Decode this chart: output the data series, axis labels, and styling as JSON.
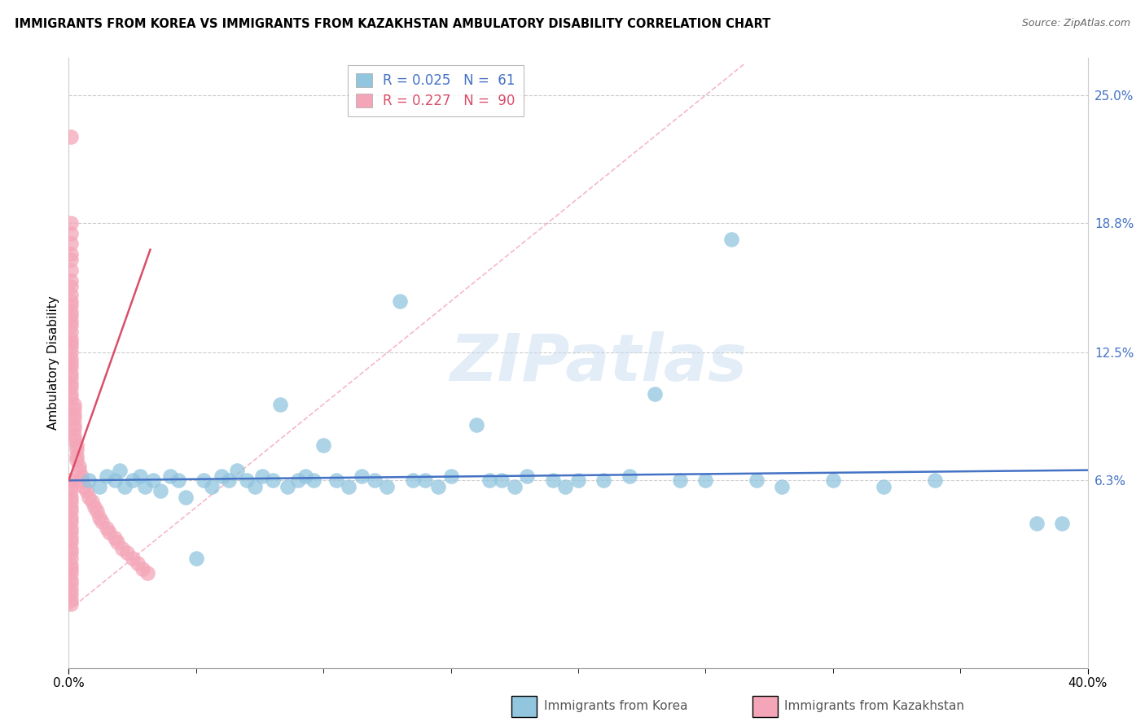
{
  "title": "IMMIGRANTS FROM KOREA VS IMMIGRANTS FROM KAZAKHSTAN AMBULATORY DISABILITY CORRELATION CHART",
  "source": "Source: ZipAtlas.com",
  "ylabel": "Ambulatory Disability",
  "xmin": 0.0,
  "xmax": 0.4,
  "ymin": -0.028,
  "ymax": 0.268,
  "ytick_vals": [
    0.063,
    0.125,
    0.188,
    0.25
  ],
  "ytick_labels": [
    "6.3%",
    "12.5%",
    "18.8%",
    "25.0%"
  ],
  "legend_korea_r": "R = 0.025",
  "legend_korea_n": "N =  61",
  "legend_kaz_r": "R = 0.227",
  "legend_kaz_n": "N =  90",
  "color_korea": "#92C5DE",
  "color_kazakhstan": "#F4A6B8",
  "trend_korea_color": "#4472C4",
  "trend_kaz_color": "#D94F6A",
  "diag_color": "#F4A6B8",
  "korea_x": [
    0.008,
    0.012,
    0.015,
    0.018,
    0.02,
    0.022,
    0.025,
    0.028,
    0.03,
    0.033,
    0.036,
    0.04,
    0.043,
    0.046,
    0.05,
    0.053,
    0.056,
    0.06,
    0.063,
    0.066,
    0.07,
    0.073,
    0.076,
    0.08,
    0.083,
    0.086,
    0.09,
    0.093,
    0.096,
    0.1,
    0.105,
    0.11,
    0.115,
    0.12,
    0.125,
    0.13,
    0.135,
    0.14,
    0.145,
    0.15,
    0.16,
    0.165,
    0.17,
    0.175,
    0.18,
    0.19,
    0.195,
    0.2,
    0.21,
    0.22,
    0.23,
    0.24,
    0.25,
    0.26,
    0.27,
    0.28,
    0.3,
    0.32,
    0.34,
    0.38,
    0.39
  ],
  "korea_y": [
    0.063,
    0.06,
    0.065,
    0.063,
    0.068,
    0.06,
    0.063,
    0.065,
    0.06,
    0.063,
    0.058,
    0.065,
    0.063,
    0.055,
    0.025,
    0.063,
    0.06,
    0.065,
    0.063,
    0.068,
    0.063,
    0.06,
    0.065,
    0.063,
    0.1,
    0.06,
    0.063,
    0.065,
    0.063,
    0.08,
    0.063,
    0.06,
    0.065,
    0.063,
    0.06,
    0.15,
    0.063,
    0.063,
    0.06,
    0.065,
    0.09,
    0.063,
    0.063,
    0.06,
    0.065,
    0.063,
    0.06,
    0.063,
    0.063,
    0.065,
    0.105,
    0.063,
    0.063,
    0.18,
    0.063,
    0.06,
    0.063,
    0.06,
    0.063,
    0.042,
    0.042
  ],
  "kaz_x": [
    0.001,
    0.001,
    0.001,
    0.001,
    0.001,
    0.001,
    0.001,
    0.001,
    0.001,
    0.001,
    0.001,
    0.001,
    0.001,
    0.001,
    0.001,
    0.001,
    0.001,
    0.001,
    0.001,
    0.001,
    0.001,
    0.001,
    0.001,
    0.001,
    0.001,
    0.001,
    0.001,
    0.001,
    0.001,
    0.001,
    0.002,
    0.002,
    0.002,
    0.002,
    0.002,
    0.002,
    0.002,
    0.002,
    0.003,
    0.003,
    0.003,
    0.003,
    0.004,
    0.004,
    0.005,
    0.005,
    0.006,
    0.007,
    0.008,
    0.009,
    0.01,
    0.011,
    0.012,
    0.013,
    0.015,
    0.016,
    0.018,
    0.019,
    0.021,
    0.023,
    0.025,
    0.027,
    0.029,
    0.031,
    0.001,
    0.001,
    0.001,
    0.001,
    0.001,
    0.001,
    0.001,
    0.001,
    0.001,
    0.001,
    0.001,
    0.001,
    0.001,
    0.001,
    0.001,
    0.001,
    0.001,
    0.001,
    0.001,
    0.001,
    0.001,
    0.001,
    0.001,
    0.001,
    0.001,
    0.001
  ],
  "kaz_y": [
    0.23,
    0.188,
    0.183,
    0.178,
    0.173,
    0.17,
    0.165,
    0.16,
    0.157,
    0.153,
    0.15,
    0.148,
    0.145,
    0.143,
    0.14,
    0.138,
    0.135,
    0.132,
    0.13,
    0.128,
    0.125,
    0.122,
    0.12,
    0.118,
    0.115,
    0.113,
    0.11,
    0.108,
    0.105,
    0.103,
    0.1,
    0.098,
    0.095,
    0.093,
    0.09,
    0.088,
    0.085,
    0.083,
    0.08,
    0.078,
    0.075,
    0.073,
    0.07,
    0.068,
    0.065,
    0.063,
    0.06,
    0.058,
    0.055,
    0.053,
    0.05,
    0.048,
    0.045,
    0.043,
    0.04,
    0.038,
    0.035,
    0.033,
    0.03,
    0.028,
    0.025,
    0.023,
    0.02,
    0.018,
    0.063,
    0.063,
    0.06,
    0.058,
    0.055,
    0.053,
    0.05,
    0.048,
    0.045,
    0.043,
    0.04,
    0.038,
    0.035,
    0.033,
    0.03,
    0.028,
    0.025,
    0.022,
    0.02,
    0.018,
    0.015,
    0.013,
    0.01,
    0.008,
    0.005,
    0.003
  ]
}
